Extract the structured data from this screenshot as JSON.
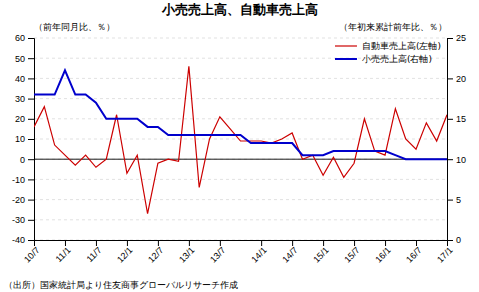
{
  "chart_data": {
    "type": "line",
    "title": "小売売上高、自動車売上高",
    "ylabel": "（前年同月比、％）",
    "y2label": "（年初来累計前年比、％）",
    "note": "（出所）国家統計局より住友商事グローバルリサーチ作成",
    "categories": [
      "10/7",
      null,
      null,
      "11/1",
      null,
      null,
      "11/7",
      null,
      null,
      "12/1",
      null,
      null,
      "12/7",
      null,
      null,
      "13/1",
      null,
      null,
      "13/7",
      null,
      null,
      null,
      "14/1",
      null,
      null,
      "14/7",
      null,
      null,
      "15/1",
      null,
      null,
      "15/7",
      null,
      null,
      "16/1",
      null,
      null,
      "16/7",
      null,
      null,
      "17/1"
    ],
    "series": [
      {
        "name": "自動車売上高(左軸)",
        "color": "#cc0000",
        "values": [
          16,
          26,
          7,
          2,
          -3,
          2,
          -4,
          0,
          22,
          -7,
          2,
          -27,
          -2,
          0,
          -1,
          46,
          -14,
          10,
          21,
          15,
          9,
          9,
          9,
          8,
          10,
          13,
          0,
          2,
          -8,
          1,
          -9,
          -2,
          20,
          4,
          2,
          25,
          10,
          5,
          18,
          9,
          22
        ]
      },
      {
        "name": "小売売上高(右軸)",
        "color": "#0000cc",
        "axis": "y2",
        "values": [
          18,
          18,
          18,
          21,
          18,
          18,
          17,
          15,
          15,
          15,
          15,
          14,
          14,
          13,
          13,
          13,
          13,
          13,
          13,
          13,
          13,
          12,
          12,
          12,
          12,
          12,
          10.5,
          10.5,
          10.5,
          11,
          11,
          11,
          11,
          11,
          11,
          10.5,
          10,
          10,
          10,
          10,
          10
        ]
      }
    ],
    "ylim": [
      -40,
      60
    ],
    "yticks": [
      -40,
      -30,
      -20,
      -10,
      0,
      10,
      20,
      30,
      40,
      50,
      60
    ],
    "y2lim": [
      0,
      25
    ],
    "y2ticks": [
      0,
      5,
      10,
      15,
      20,
      25
    ],
    "grid": true,
    "legend": "upper-right"
  }
}
